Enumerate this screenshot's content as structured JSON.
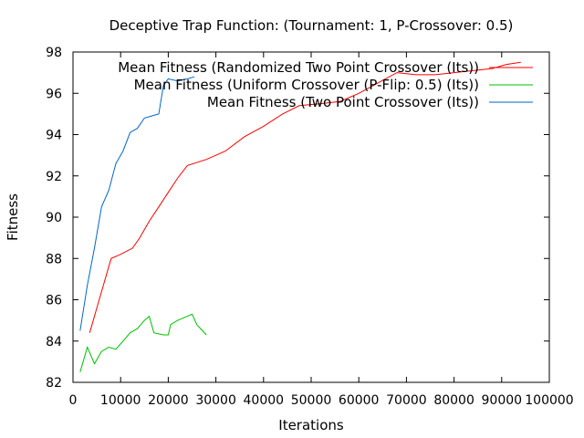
{
  "chart_data": {
    "type": "line",
    "title": "Deceptive Trap Function:  (Tournament: 1, P-Crossover: 0.5)",
    "xlabel": "Iterations",
    "ylabel": "Fitness",
    "xlim": [
      0,
      100000
    ],
    "ylim": [
      82,
      98
    ],
    "xticks": [
      0,
      10000,
      20000,
      30000,
      40000,
      50000,
      60000,
      70000,
      80000,
      90000,
      100000
    ],
    "yticks": [
      82,
      84,
      86,
      88,
      90,
      92,
      94,
      96,
      98
    ],
    "grid": false,
    "legend_position": "top-right",
    "series": [
      {
        "name": "Mean Fitness (Randomized Two Point Crossover (Its))",
        "color": "#ff0000",
        "x": [
          3500,
          5500,
          8000,
          10000,
          12500,
          14000,
          16000,
          18000,
          20000,
          22000,
          24000,
          28000,
          32000,
          36000,
          40000,
          44000,
          47500,
          52000,
          56000,
          60000,
          64000,
          68000,
          72000,
          76000,
          80000,
          84000,
          88000,
          91000,
          94000
        ],
        "y": [
          84.4,
          86.0,
          88.0,
          88.2,
          88.5,
          89.0,
          89.8,
          90.5,
          91.2,
          91.9,
          92.5,
          92.8,
          93.2,
          93.9,
          94.4,
          95.0,
          95.4,
          95.5,
          95.6,
          96.0,
          96.5,
          97.0,
          96.9,
          96.9,
          97.0,
          97.1,
          97.2,
          97.4,
          97.5
        ]
      },
      {
        "name": "Mean Fitness (Uniform Crossover (P-Flip: 0.5) (Its))",
        "color": "#00c000",
        "x": [
          1500,
          3000,
          4500,
          6000,
          7500,
          9000,
          10500,
          12000,
          13500,
          15000,
          16000,
          17000,
          19000,
          20000,
          20500,
          22000,
          24000,
          25000,
          26000,
          28000
        ],
        "y": [
          82.5,
          83.7,
          82.9,
          83.5,
          83.7,
          83.6,
          84.0,
          84.4,
          84.6,
          85.0,
          85.2,
          84.4,
          84.3,
          84.3,
          84.8,
          85.0,
          85.2,
          85.3,
          84.8,
          84.3
        ]
      },
      {
        "name": "Mean Fitness (Two Point Crossover (Its))",
        "color": "#0066cc",
        "x": [
          1500,
          3000,
          4500,
          6000,
          7500,
          9000,
          10500,
          12000,
          13500,
          15000,
          16500,
          18000,
          19000,
          20000,
          22000,
          24000,
          25500
        ],
        "y": [
          84.5,
          86.7,
          88.5,
          90.5,
          91.3,
          92.6,
          93.2,
          94.1,
          94.3,
          94.8,
          94.9,
          95.0,
          96.4,
          96.7,
          96.6,
          96.7,
          96.8
        ]
      }
    ]
  }
}
